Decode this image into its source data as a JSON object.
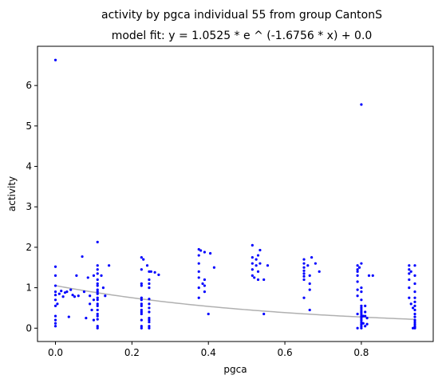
{
  "chart_data": {
    "type": "scatter",
    "title": "activity by pgca individual 55 from group CantonS",
    "subtitle": "model fit: y = 1.0525 * e ^ (-1.6756 * x) + 0.0",
    "xlabel": "pgca",
    "ylabel": "activity",
    "xlim": [
      -0.047,
      0.988
    ],
    "ylim": [
      -0.33,
      6.97
    ],
    "x_ticks": [
      0.0,
      0.2,
      0.4,
      0.6,
      0.8
    ],
    "x_tick_labels": [
      "0.0",
      "0.2",
      "0.4",
      "0.6",
      "0.8"
    ],
    "y_ticks": [
      0,
      1,
      2,
      3,
      4,
      5,
      6
    ],
    "y_tick_labels": [
      "0",
      "1",
      "2",
      "3",
      "4",
      "5",
      "6"
    ],
    "grid": false,
    "colors": {
      "points": "#0000ff",
      "fit": "#b0b0b0",
      "axes": "#000000"
    },
    "fit": {
      "a": 1.0525,
      "b": -1.6756,
      "c": 0.0
    },
    "points": [
      [
        0.0,
        6.63
      ],
      [
        0.0,
        1.52
      ],
      [
        0.0,
        1.3
      ],
      [
        0.0,
        1.05
      ],
      [
        0.0,
        0.9
      ],
      [
        0.0,
        0.82
      ],
      [
        0.0,
        0.7
      ],
      [
        0.0,
        0.55
      ],
      [
        0.0,
        0.3
      ],
      [
        0.0,
        0.2
      ],
      [
        0.0,
        0.12
      ],
      [
        0.0,
        0.05
      ],
      [
        0.005,
        0.6
      ],
      [
        0.01,
        0.85
      ],
      [
        0.015,
        0.92
      ],
      [
        0.02,
        0.78
      ],
      [
        0.025,
        0.88
      ],
      [
        0.03,
        0.9
      ],
      [
        0.035,
        0.28
      ],
      [
        0.04,
        0.95
      ],
      [
        0.045,
        0.82
      ],
      [
        0.05,
        0.78
      ],
      [
        0.055,
        1.3
      ],
      [
        0.06,
        0.8
      ],
      [
        0.07,
        1.77
      ],
      [
        0.075,
        0.9
      ],
      [
        0.08,
        0.25
      ],
      [
        0.085,
        1.25
      ],
      [
        0.09,
        0.8
      ],
      [
        0.09,
        0.6
      ],
      [
        0.095,
        0.45
      ],
      [
        0.1,
        1.3
      ],
      [
        0.1,
        0.7
      ],
      [
        0.1,
        0.2
      ],
      [
        0.11,
        2.13
      ],
      [
        0.11,
        1.55
      ],
      [
        0.11,
        1.45
      ],
      [
        0.11,
        1.35
      ],
      [
        0.11,
        1.2
      ],
      [
        0.11,
        1.1
      ],
      [
        0.11,
        1.05
      ],
      [
        0.11,
        0.95
      ],
      [
        0.11,
        0.9
      ],
      [
        0.11,
        0.85
      ],
      [
        0.11,
        0.75
      ],
      [
        0.11,
        0.7
      ],
      [
        0.11,
        0.6
      ],
      [
        0.11,
        0.55
      ],
      [
        0.11,
        0.45
      ],
      [
        0.11,
        0.35
      ],
      [
        0.11,
        0.3
      ],
      [
        0.11,
        0.22
      ],
      [
        0.11,
        0.05
      ],
      [
        0.11,
        0.0
      ],
      [
        0.12,
        1.3
      ],
      [
        0.125,
        1.0
      ],
      [
        0.13,
        0.8
      ],
      [
        0.14,
        1.55
      ],
      [
        0.225,
        1.75
      ],
      [
        0.225,
        1.45
      ],
      [
        0.225,
        1.1
      ],
      [
        0.225,
        1.05
      ],
      [
        0.225,
        0.75
      ],
      [
        0.225,
        0.7
      ],
      [
        0.225,
        0.6
      ],
      [
        0.225,
        0.55
      ],
      [
        0.225,
        0.45
      ],
      [
        0.225,
        0.4
      ],
      [
        0.225,
        0.35
      ],
      [
        0.225,
        0.2
      ],
      [
        0.225,
        0.05
      ],
      [
        0.225,
        0.0
      ],
      [
        0.23,
        1.7
      ],
      [
        0.24,
        1.55
      ],
      [
        0.245,
        1.4
      ],
      [
        0.245,
        1.2
      ],
      [
        0.245,
        1.1
      ],
      [
        0.245,
        1.0
      ],
      [
        0.245,
        0.72
      ],
      [
        0.245,
        0.6
      ],
      [
        0.245,
        0.5
      ],
      [
        0.245,
        0.4
      ],
      [
        0.245,
        0.25
      ],
      [
        0.245,
        0.2
      ],
      [
        0.245,
        0.15
      ],
      [
        0.245,
        0.05
      ],
      [
        0.245,
        0.0
      ],
      [
        0.25,
        1.4
      ],
      [
        0.26,
        1.38
      ],
      [
        0.27,
        1.32
      ],
      [
        0.375,
        1.95
      ],
      [
        0.375,
        1.8
      ],
      [
        0.375,
        1.6
      ],
      [
        0.375,
        1.4
      ],
      [
        0.375,
        1.25
      ],
      [
        0.375,
        1.0
      ],
      [
        0.375,
        0.75
      ],
      [
        0.38,
        1.92
      ],
      [
        0.385,
        1.1
      ],
      [
        0.39,
        1.88
      ],
      [
        0.39,
        1.2
      ],
      [
        0.39,
        1.05
      ],
      [
        0.39,
        0.9
      ],
      [
        0.4,
        0.35
      ],
      [
        0.405,
        1.85
      ],
      [
        0.415,
        1.5
      ],
      [
        0.515,
        2.05
      ],
      [
        0.515,
        1.75
      ],
      [
        0.515,
        1.6
      ],
      [
        0.515,
        1.45
      ],
      [
        0.515,
        1.3
      ],
      [
        0.52,
        1.25
      ],
      [
        0.525,
        1.7
      ],
      [
        0.525,
        1.55
      ],
      [
        0.53,
        1.8
      ],
      [
        0.53,
        1.4
      ],
      [
        0.53,
        1.2
      ],
      [
        0.535,
        1.6
      ],
      [
        0.535,
        1.93
      ],
      [
        0.545,
        0.35
      ],
      [
        0.545,
        1.2
      ],
      [
        0.555,
        1.55
      ],
      [
        0.65,
        1.7
      ],
      [
        0.65,
        1.6
      ],
      [
        0.65,
        1.5
      ],
      [
        0.65,
        1.42
      ],
      [
        0.65,
        1.35
      ],
      [
        0.65,
        1.28
      ],
      [
        0.65,
        1.2
      ],
      [
        0.65,
        0.75
      ],
      [
        0.66,
        1.55
      ],
      [
        0.665,
        0.45
      ],
      [
        0.665,
        1.3
      ],
      [
        0.665,
        1.1
      ],
      [
        0.665,
        0.95
      ],
      [
        0.67,
        1.75
      ],
      [
        0.68,
        1.6
      ],
      [
        0.69,
        1.4
      ],
      [
        0.79,
        1.55
      ],
      [
        0.79,
        1.45
      ],
      [
        0.79,
        1.4
      ],
      [
        0.79,
        1.3
      ],
      [
        0.79,
        1.15
      ],
      [
        0.79,
        0.95
      ],
      [
        0.79,
        0.8
      ],
      [
        0.79,
        0.35
      ],
      [
        0.79,
        0.0
      ],
      [
        0.795,
        1.5
      ],
      [
        0.8,
        5.53
      ],
      [
        0.8,
        1.6
      ],
      [
        0.8,
        1.0
      ],
      [
        0.8,
        0.9
      ],
      [
        0.8,
        0.7
      ],
      [
        0.8,
        0.55
      ],
      [
        0.8,
        0.5
      ],
      [
        0.8,
        0.45
      ],
      [
        0.8,
        0.4
      ],
      [
        0.8,
        0.35
      ],
      [
        0.8,
        0.3
      ],
      [
        0.8,
        0.25
      ],
      [
        0.8,
        0.2
      ],
      [
        0.8,
        0.15
      ],
      [
        0.8,
        0.1
      ],
      [
        0.8,
        0.05
      ],
      [
        0.8,
        0.0
      ],
      [
        0.805,
        0.3
      ],
      [
        0.805,
        0.12
      ],
      [
        0.81,
        0.55
      ],
      [
        0.81,
        0.4
      ],
      [
        0.81,
        0.3
      ],
      [
        0.81,
        0.05
      ],
      [
        0.815,
        0.25
      ],
      [
        0.815,
        0.1
      ],
      [
        0.82,
        1.3
      ],
      [
        0.83,
        1.3
      ],
      [
        0.925,
        1.55
      ],
      [
        0.925,
        1.45
      ],
      [
        0.925,
        1.35
      ],
      [
        0.925,
        1.2
      ],
      [
        0.925,
        1.0
      ],
      [
        0.925,
        0.75
      ],
      [
        0.93,
        0.6
      ],
      [
        0.93,
        1.4
      ],
      [
        0.935,
        0.5
      ],
      [
        0.935,
        0.0
      ],
      [
        0.94,
        1.55
      ],
      [
        0.94,
        1.3
      ],
      [
        0.94,
        1.1
      ],
      [
        0.94,
        0.9
      ],
      [
        0.94,
        0.75
      ],
      [
        0.94,
        0.65
      ],
      [
        0.94,
        0.55
      ],
      [
        0.94,
        0.45
      ],
      [
        0.94,
        0.35
      ],
      [
        0.94,
        0.28
      ],
      [
        0.94,
        0.2
      ],
      [
        0.94,
        0.15
      ],
      [
        0.94,
        0.1
      ],
      [
        0.94,
        0.05
      ],
      [
        0.94,
        0.02
      ],
      [
        0.94,
        0.0
      ]
    ]
  }
}
